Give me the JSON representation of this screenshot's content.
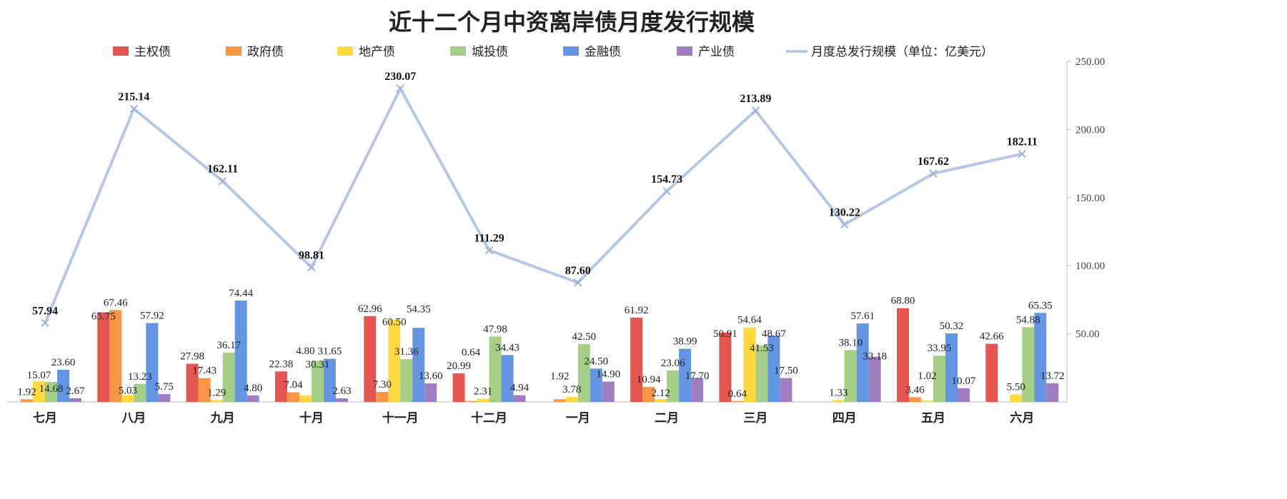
{
  "chart_data": {
    "type": "bar+line",
    "title": "近十二个月中资离岸债月度发行规模",
    "categories": [
      "七月",
      "八月",
      "九月",
      "十月",
      "十一月",
      "十二月",
      "一月",
      "二月",
      "三月",
      "四月",
      "五月",
      "六月"
    ],
    "series": [
      {
        "name": "主权债",
        "type": "bar",
        "color": "#E45650",
        "values": [
          null,
          65.75,
          27.98,
          22.38,
          62.96,
          20.99,
          null,
          61.92,
          50.91,
          null,
          68.8,
          42.66
        ]
      },
      {
        "name": "政府债",
        "type": "bar",
        "color": "#F79646",
        "values": [
          1.92,
          67.46,
          17.43,
          7.04,
          7.3,
          0.64,
          1.92,
          10.94,
          0.64,
          null,
          3.46,
          null
        ]
      },
      {
        "name": "地产债",
        "type": "bar",
        "color": "#FFD93F",
        "values": [
          15.07,
          5.03,
          1.29,
          4.8,
          60.5,
          2.31,
          3.78,
          2.12,
          54.64,
          1.33,
          1.02,
          5.5
        ]
      },
      {
        "name": "城投债",
        "type": "bar",
        "color": "#A5CF86",
        "values": [
          14.68,
          13.23,
          36.17,
          30.31,
          31.36,
          47.98,
          42.5,
          23.06,
          41.53,
          38.1,
          33.95,
          54.88
        ]
      },
      {
        "name": "金融债",
        "type": "bar",
        "color": "#6495E2",
        "values": [
          23.6,
          57.92,
          74.44,
          31.65,
          54.35,
          34.43,
          24.5,
          38.99,
          48.67,
          57.61,
          50.32,
          65.35
        ]
      },
      {
        "name": "产业债",
        "type": "bar",
        "color": "#A07DC0",
        "values": [
          2.67,
          5.75,
          4.8,
          2.63,
          13.6,
          4.94,
          14.9,
          17.7,
          17.5,
          33.18,
          10.07,
          13.72
        ]
      },
      {
        "name": "月度总发行规模（单位：亿美元）",
        "type": "line",
        "color": "#B4C7E7",
        "values": [
          57.94,
          215.14,
          162.11,
          98.81,
          230.07,
          111.29,
          87.6,
          154.73,
          213.89,
          130.22,
          167.62,
          182.11
        ]
      }
    ],
    "y_axis": {
      "position": "right",
      "ylim": [
        0,
        250
      ],
      "ticks": [
        "50.00",
        "100.00",
        "150.00",
        "200.00",
        "250.00"
      ]
    },
    "grid": false,
    "legend": "top"
  }
}
